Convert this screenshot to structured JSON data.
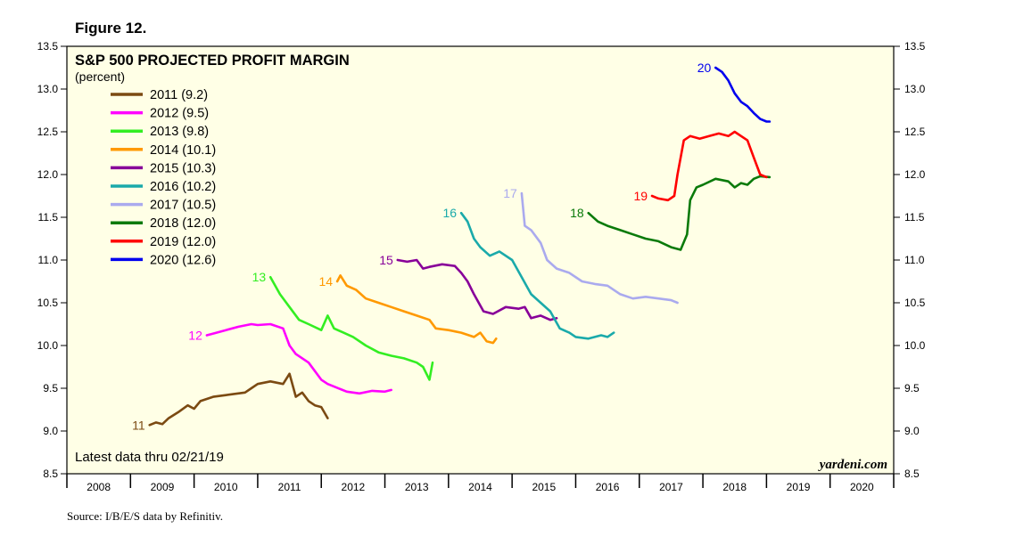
{
  "figure_label": "Figure 12.",
  "source": "Source: I/B/E/S data by Refinitiv.",
  "chart_data": {
    "type": "line",
    "title": "S&P 500 PROJECTED PROFIT MARGIN",
    "subtitle": "(percent)",
    "note": "Latest data thru 02/21/19",
    "watermark": "yardeni.com",
    "background_color": "#ffffe6",
    "x_range": [
      2008,
      2021
    ],
    "ylim": [
      8.5,
      13.5
    ],
    "y_ticks": [
      "13.5",
      "13.0",
      "12.5",
      "12.0",
      "11.5",
      "11.0",
      "10.5",
      "10.0",
      "9.5",
      "9.0",
      "8.5"
    ],
    "x_tick_labels": [
      "2008",
      "2009",
      "2010",
      "2011",
      "2012",
      "2013",
      "2014",
      "2015",
      "2016",
      "2017",
      "2018",
      "2019",
      "2020"
    ],
    "legend_position": "top-left",
    "series": [
      {
        "name": "2011 (9.2)",
        "tag": "11",
        "color": "#7b4a12",
        "x": [
          2009.3,
          2009.4,
          2009.5,
          2009.6,
          2009.75,
          2009.9,
          2010.0,
          2010.1,
          2010.3,
          2010.5,
          2010.6,
          2010.8,
          2010.9,
          2011.0,
          2011.2,
          2011.4,
          2011.5,
          2011.6,
          2011.7,
          2011.8,
          2011.9,
          2012.0,
          2012.1
        ],
        "y": [
          9.07,
          9.1,
          9.08,
          9.15,
          9.22,
          9.3,
          9.26,
          9.35,
          9.4,
          9.42,
          9.43,
          9.45,
          9.5,
          9.55,
          9.58,
          9.55,
          9.67,
          9.4,
          9.45,
          9.35,
          9.3,
          9.28,
          9.15
        ]
      },
      {
        "name": "2012 (9.5)",
        "tag": "12",
        "color": "#ff00ff",
        "x": [
          2010.2,
          2010.3,
          2010.5,
          2010.7,
          2010.9,
          2011.0,
          2011.2,
          2011.4,
          2011.5,
          2011.6,
          2011.8,
          2012.0,
          2012.1,
          2012.2,
          2012.4,
          2012.6,
          2012.8,
          2013.0,
          2013.1
        ],
        "y": [
          10.12,
          10.14,
          10.18,
          10.22,
          10.25,
          10.24,
          10.25,
          10.2,
          10.0,
          9.9,
          9.8,
          9.6,
          9.55,
          9.52,
          9.46,
          9.44,
          9.47,
          9.46,
          9.48
        ]
      },
      {
        "name": "2013 (9.8)",
        "tag": "13",
        "color": "#33ee22",
        "x": [
          2011.2,
          2011.35,
          2011.5,
          2011.65,
          2011.8,
          2012.0,
          2012.1,
          2012.2,
          2012.35,
          2012.5,
          2012.7,
          2012.9,
          2013.1,
          2013.3,
          2013.5,
          2013.6,
          2013.7,
          2013.75
        ],
        "y": [
          10.8,
          10.6,
          10.45,
          10.3,
          10.25,
          10.18,
          10.35,
          10.2,
          10.15,
          10.1,
          10.0,
          9.92,
          9.88,
          9.85,
          9.8,
          9.75,
          9.6,
          9.8
        ]
      },
      {
        "name": "2014 (10.1)",
        "tag": "14",
        "color": "#ff9900",
        "x": [
          2012.25,
          2012.3,
          2012.4,
          2012.55,
          2012.7,
          2012.9,
          2013.1,
          2013.3,
          2013.5,
          2013.7,
          2013.8,
          2014.0,
          2014.2,
          2014.4,
          2014.5,
          2014.6,
          2014.7,
          2014.75
        ],
        "y": [
          10.75,
          10.82,
          10.7,
          10.65,
          10.55,
          10.5,
          10.45,
          10.4,
          10.35,
          10.3,
          10.2,
          10.18,
          10.15,
          10.1,
          10.15,
          10.05,
          10.03,
          10.08
        ]
      },
      {
        "name": "2015 (10.3)",
        "tag": "15",
        "color": "#880099",
        "x": [
          2013.2,
          2013.35,
          2013.5,
          2013.6,
          2013.7,
          2013.9,
          2014.1,
          2014.2,
          2014.3,
          2014.4,
          2014.55,
          2014.7,
          2014.9,
          2015.1,
          2015.2,
          2015.3,
          2015.45,
          2015.6,
          2015.7
        ],
        "y": [
          11.0,
          10.98,
          11.0,
          10.9,
          10.92,
          10.95,
          10.93,
          10.85,
          10.75,
          10.6,
          10.4,
          10.37,
          10.45,
          10.43,
          10.45,
          10.32,
          10.35,
          10.3,
          10.32
        ]
      },
      {
        "name": "2016 (10.2)",
        "tag": "16",
        "color": "#1aaaaa",
        "x": [
          2014.2,
          2014.3,
          2014.4,
          2014.5,
          2014.65,
          2014.8,
          2015.0,
          2015.15,
          2015.3,
          2015.45,
          2015.6,
          2015.75,
          2015.9,
          2016.0,
          2016.2,
          2016.4,
          2016.5,
          2016.6
        ],
        "y": [
          11.55,
          11.45,
          11.25,
          11.15,
          11.05,
          11.1,
          11.0,
          10.8,
          10.6,
          10.5,
          10.4,
          10.2,
          10.15,
          10.1,
          10.08,
          10.12,
          10.1,
          10.15
        ]
      },
      {
        "name": "2017 (10.5)",
        "tag": "17",
        "color": "#aaaaee",
        "x": [
          2015.15,
          2015.2,
          2015.3,
          2015.45,
          2015.55,
          2015.7,
          2015.9,
          2016.1,
          2016.3,
          2016.5,
          2016.7,
          2016.9,
          2017.1,
          2017.3,
          2017.5,
          2017.6
        ],
        "y": [
          11.78,
          11.4,
          11.35,
          11.2,
          11.0,
          10.9,
          10.85,
          10.75,
          10.72,
          10.7,
          10.6,
          10.55,
          10.57,
          10.55,
          10.53,
          10.5
        ]
      },
      {
        "name": "2018 (12.0)",
        "tag": "18",
        "color": "#0a7a0a",
        "x": [
          2016.2,
          2016.35,
          2016.5,
          2016.7,
          2016.9,
          2017.1,
          2017.3,
          2017.5,
          2017.65,
          2017.75,
          2017.8,
          2017.9,
          2018.0,
          2018.2,
          2018.4,
          2018.5,
          2018.6,
          2018.7,
          2018.8,
          2018.9,
          2019.05
        ],
        "y": [
          11.55,
          11.45,
          11.4,
          11.35,
          11.3,
          11.25,
          11.22,
          11.15,
          11.12,
          11.3,
          11.7,
          11.85,
          11.88,
          11.95,
          11.92,
          11.85,
          11.9,
          11.88,
          11.95,
          11.98,
          11.97
        ]
      },
      {
        "name": "2019 (12.0)",
        "tag": "19",
        "color": "#ff0000",
        "x": [
          2017.2,
          2017.3,
          2017.45,
          2017.55,
          2017.6,
          2017.7,
          2017.8,
          2017.95,
          2018.1,
          2018.25,
          2018.4,
          2018.5,
          2018.6,
          2018.7,
          2018.8,
          2018.9,
          2019.0
        ],
        "y": [
          11.75,
          11.72,
          11.7,
          11.75,
          12.0,
          12.4,
          12.45,
          12.42,
          12.45,
          12.48,
          12.45,
          12.5,
          12.45,
          12.4,
          12.2,
          12.0,
          11.97
        ]
      },
      {
        "name": "2020 (12.6)",
        "tag": "20",
        "color": "#0000ee",
        "x": [
          2018.2,
          2018.3,
          2018.4,
          2018.5,
          2018.6,
          2018.7,
          2018.8,
          2018.9,
          2019.0,
          2019.05
        ],
        "y": [
          13.25,
          13.2,
          13.1,
          12.95,
          12.85,
          12.8,
          12.72,
          12.65,
          12.62,
          12.62
        ]
      }
    ]
  }
}
